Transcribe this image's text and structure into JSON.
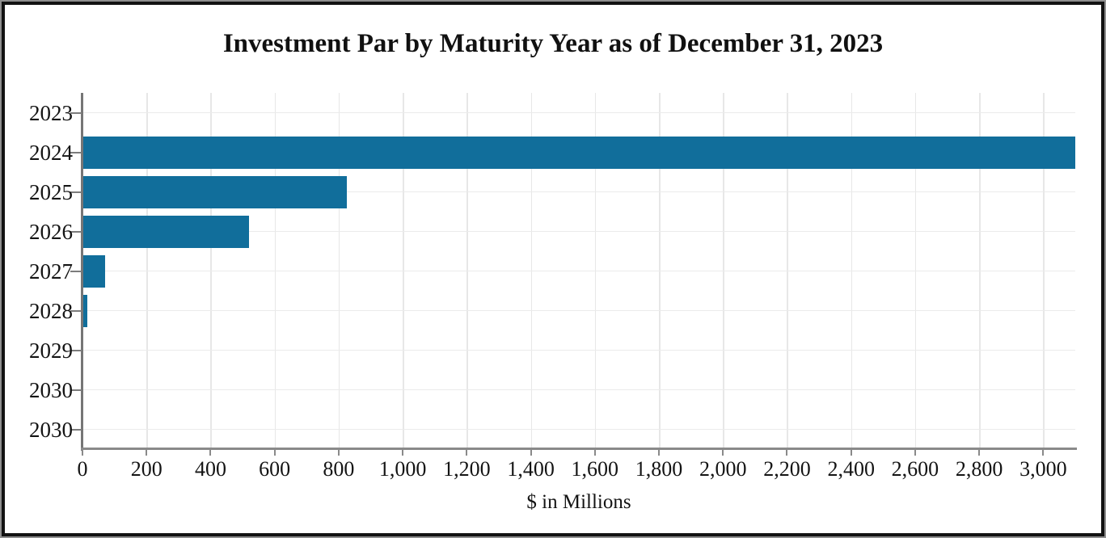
{
  "chart_data": {
    "type": "bar",
    "orientation": "horizontal",
    "title": "Investment Par by Maturity Year as of December 31, 2023",
    "xlabel": "$ in Millions",
    "ylabel": "",
    "categories": [
      "2023",
      "2024",
      "2025",
      "2026",
      "2027",
      "2028",
      "2029",
      "2030",
      "2030"
    ],
    "values": [
      0,
      3100,
      825,
      520,
      70,
      15,
      0,
      0,
      0
    ],
    "x_tick_values": [
      0,
      200,
      400,
      600,
      800,
      1000,
      1200,
      1400,
      1600,
      1800,
      2000,
      2200,
      2400,
      2600,
      2800,
      3000
    ],
    "x_tick_labels": [
      "0",
      "200",
      "400",
      "600",
      "800",
      "1,000",
      "1,200",
      "1,400",
      "1,600",
      "1,800",
      "2,000",
      "2,200",
      "2,400",
      "2,600",
      "2,800",
      "3,000"
    ],
    "xlim": [
      0,
      3100
    ],
    "grid": true,
    "legend": "none",
    "colors": {
      "bar": "#116e9b",
      "axis": "#7c7c7c",
      "gridline": "#e8e8e8",
      "text": "#141414",
      "frame": "#121212",
      "background": "#ffffff"
    }
  }
}
